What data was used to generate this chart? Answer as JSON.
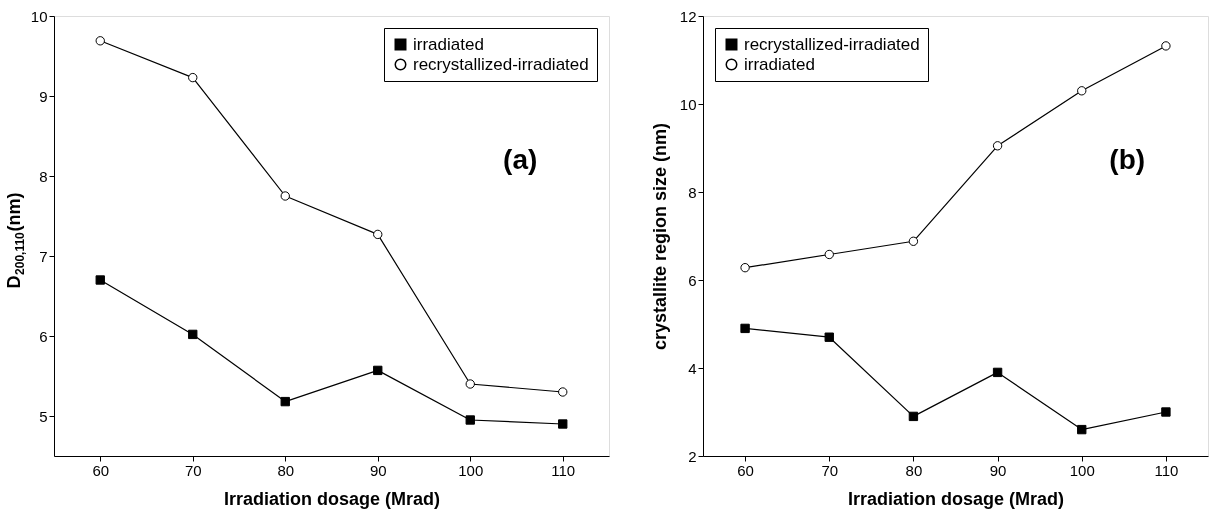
{
  "chart_data": [
    {
      "type": "line",
      "xlabel": "Irradiation dosage (Mrad)",
      "ylabel": "D$_{200,110}$(nm)",
      "x": [
        60,
        70,
        80,
        90,
        100,
        110
      ],
      "series": [
        {
          "name": "irradiated",
          "color": "#000000",
          "marker": "square",
          "values": [
            6.7,
            6.02,
            5.18,
            5.57,
            4.95,
            4.9
          ]
        },
        {
          "name": "recrystallized-irradiated",
          "color": "#000000",
          "marker": "circle",
          "values": [
            9.69,
            9.23,
            7.75,
            7.27,
            5.4,
            5.3
          ]
        }
      ],
      "xlim": [
        55,
        115
      ],
      "xticks": [
        60,
        70,
        80,
        90,
        100,
        110
      ],
      "ylim": [
        4.5,
        10
      ],
      "yticks": [
        5,
        6,
        7,
        8,
        9,
        10
      ],
      "annotations": [
        "(a)"
      ],
      "legend": "top right",
      "grid": false,
      "line_style": "solid"
    },
    {
      "type": "line",
      "xlabel": "Irradiation dosage (Mrad)",
      "ylabel": "crystallite region size (nm)",
      "x": [
        60,
        70,
        80,
        90,
        100,
        110
      ],
      "series": [
        {
          "name": "recrystallized-irradiated",
          "color": "#000000",
          "marker": "square",
          "values": [
            4.9,
            4.7,
            2.9,
            3.9,
            2.6,
            3.0
          ]
        },
        {
          "name": "irradiated",
          "color": "#000000",
          "marker": "circle",
          "values": [
            6.28,
            6.58,
            6.88,
            9.05,
            10.3,
            11.32
          ]
        }
      ],
      "xlim": [
        55,
        115
      ],
      "xticks": [
        60,
        70,
        80,
        90,
        100,
        110
      ],
      "ylim": [
        2,
        12
      ],
      "yticks": [
        2,
        4,
        6,
        8,
        10,
        12
      ],
      "annotations": [
        "(b)"
      ],
      "legend": "top left",
      "grid": false,
      "line_style": "solid"
    }
  ]
}
